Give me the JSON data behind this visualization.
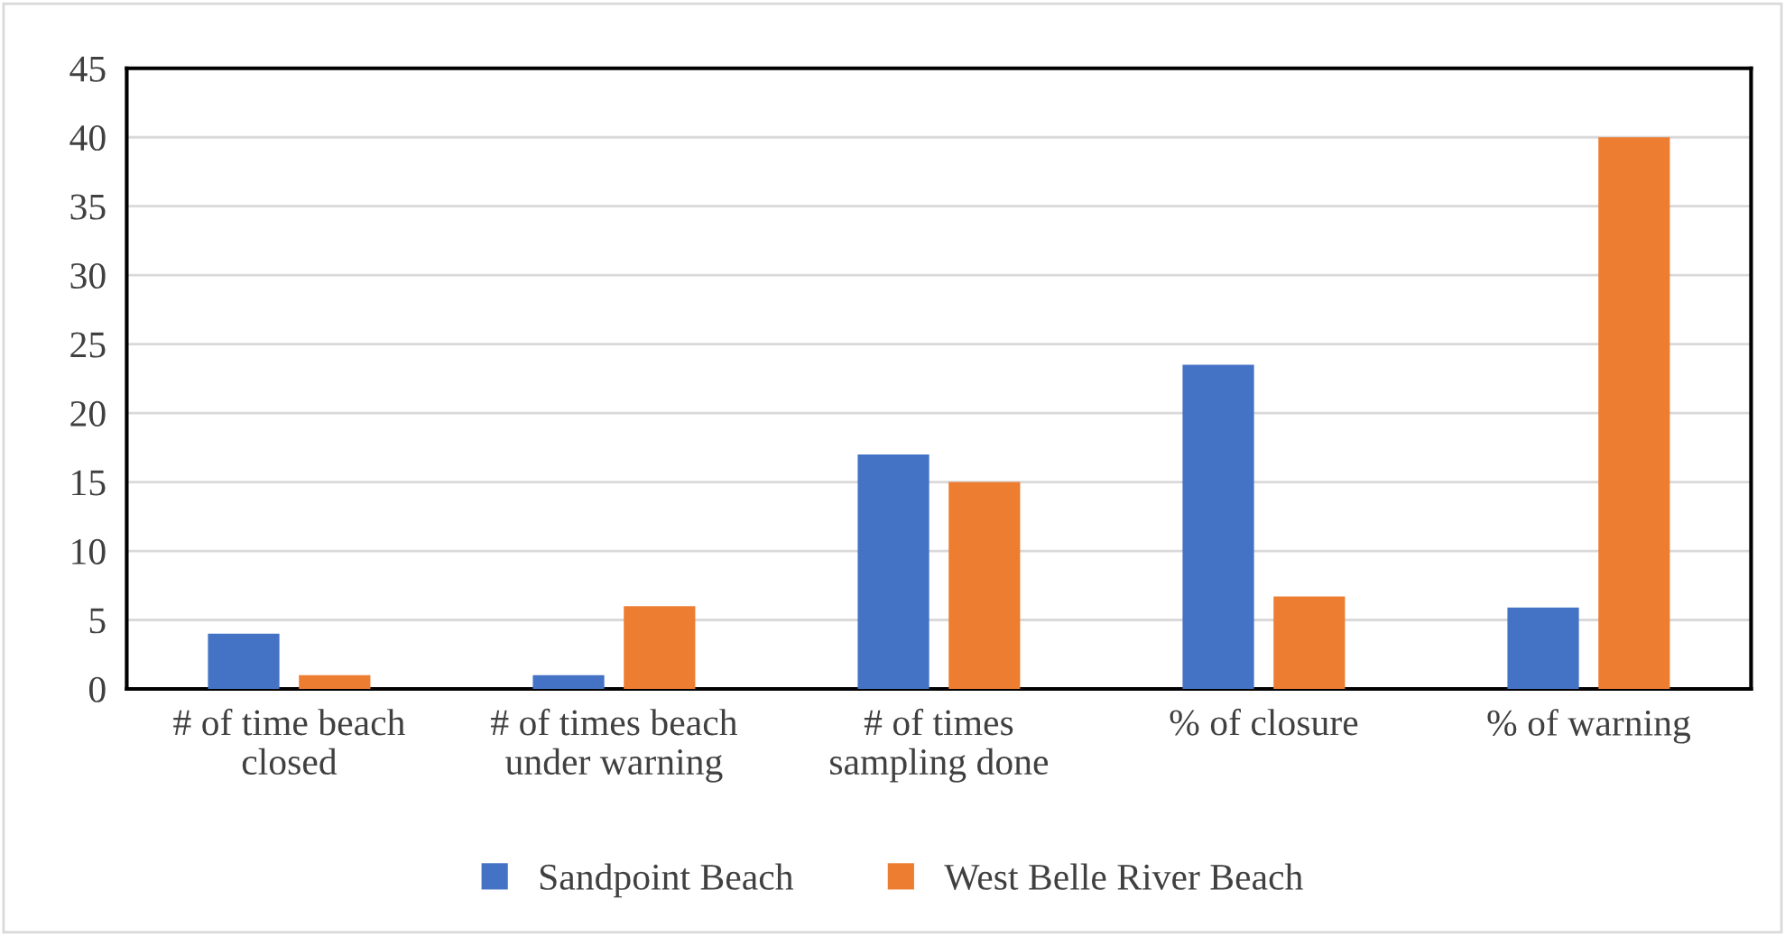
{
  "chart_data": {
    "type": "bar",
    "categories": [
      "# of time beach\nclosed",
      "# of times beach\nunder warning",
      "# of times\nsampling done",
      "% of closure",
      "% of warning"
    ],
    "series": [
      {
        "name": "Sandpoint Beach",
        "color": "#4472c4",
        "values": [
          4,
          1,
          17,
          23.5,
          5.9
        ]
      },
      {
        "name": "West Belle River Beach",
        "color": "#ed7d31",
        "values": [
          1,
          6,
          15,
          6.7,
          40
        ]
      }
    ],
    "ylim": [
      0,
      45
    ],
    "yticks": [
      0,
      5,
      10,
      15,
      20,
      25,
      30,
      35,
      40,
      45
    ],
    "grid": "y",
    "legend": "bottom"
  }
}
